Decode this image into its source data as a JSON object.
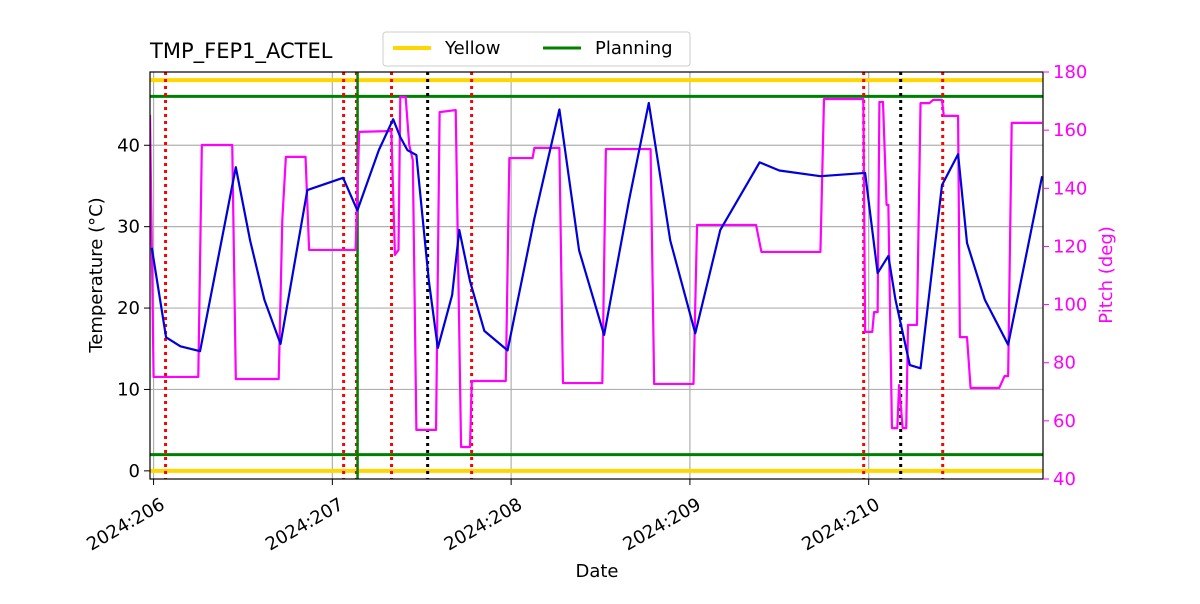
{
  "chart_data": {
    "type": "line",
    "title": "TMP_FEP1_ACTEL",
    "x_label": "Date",
    "y_label": "Temperature (°C)",
    "y2_label": "Pitch (deg)",
    "xlim": [
      205.98,
      210.975
    ],
    "xticks": [
      {
        "value": 206,
        "label": "2024:206"
      },
      {
        "value": 207,
        "label": "2024:207"
      },
      {
        "value": 208,
        "label": "2024:208"
      },
      {
        "value": 209,
        "label": "2024:209"
      },
      {
        "value": 210,
        "label": "2024:210"
      }
    ],
    "ylim": [
      -1,
      49
    ],
    "yticks": [
      0,
      10,
      20,
      30,
      40
    ],
    "y2lim": [
      40,
      180
    ],
    "y2ticks": [
      40,
      60,
      80,
      100,
      120,
      140,
      160,
      180
    ],
    "y2_color": "#ff00ff",
    "grid": true,
    "legend": "top",
    "limit_lines": [
      {
        "name": "Yellow",
        "color": "#ffd700",
        "values": [
          0,
          48
        ]
      },
      {
        "name": "Planning",
        "color": "#008000",
        "values": [
          2,
          46
        ]
      }
    ],
    "vlines": [
      {
        "x": 206.067,
        "color": "#ff0000",
        "style": "dotted"
      },
      {
        "x": 207.063,
        "color": "#ff0000",
        "style": "dotted"
      },
      {
        "x": 207.135,
        "color": "#ff0000",
        "style": "dotted"
      },
      {
        "x": 207.141,
        "color": "#008000",
        "style": "solid"
      },
      {
        "x": 207.331,
        "color": "#ff0000",
        "style": "dotted"
      },
      {
        "x": 207.533,
        "color": "#000000",
        "style": "dotted"
      },
      {
        "x": 207.779,
        "color": "#ff0000",
        "style": "dotted"
      },
      {
        "x": 209.972,
        "color": "#ff0000",
        "style": "dotted"
      },
      {
        "x": 210.179,
        "color": "#000000",
        "style": "dotted"
      },
      {
        "x": 210.414,
        "color": "#ff0000",
        "style": "dotted"
      }
    ],
    "series": [
      {
        "axis": "y2",
        "color": "#ff00ff",
        "x": [
          205.98,
          206.0,
          206.25,
          206.27,
          206.44,
          206.46,
          206.7,
          206.72,
          206.74,
          206.85,
          206.87,
          207.13,
          207.15,
          207.33,
          207.35,
          207.37,
          207.38,
          207.41,
          207.43,
          207.45,
          207.47,
          207.58,
          207.6,
          207.69,
          207.72,
          207.77,
          207.78,
          207.97,
          207.99,
          208.12,
          208.13,
          208.27,
          208.29,
          208.51,
          208.53,
          208.78,
          208.8,
          209.02,
          209.04,
          209.37,
          209.4,
          209.73,
          209.75,
          209.97,
          209.98,
          210.02,
          210.03,
          210.05,
          210.06,
          210.08,
          210.1,
          210.11,
          210.13,
          210.16,
          210.17,
          210.19,
          210.21,
          210.22,
          210.27,
          210.29,
          210.34,
          210.36,
          210.41,
          210.42,
          210.5,
          210.51,
          210.55,
          210.57,
          210.73,
          210.76,
          210.78,
          210.8,
          210.97
        ],
        "values": [
          165.2,
          75.1,
          75.1,
          154.9,
          154.9,
          74.4,
          74.4,
          129.1,
          150.8,
          150.8,
          118.8,
          118.8,
          159.4,
          159.7,
          117.1,
          118.8,
          171.4,
          171.4,
          154.9,
          149.7,
          56.9,
          56.9,
          166.2,
          166.9,
          51.0,
          51.0,
          73.7,
          73.7,
          150.4,
          150.4,
          153.9,
          153.9,
          73.0,
          73.0,
          153.5,
          153.5,
          72.7,
          72.7,
          127.4,
          127.4,
          118.1,
          118.1,
          170.7,
          170.7,
          90.6,
          90.6,
          97.4,
          97.4,
          169.7,
          169.7,
          134.3,
          134.3,
          57.5,
          57.5,
          72.3,
          57.5,
          57.5,
          93.0,
          93.0,
          169.3,
          169.3,
          170.4,
          170.4,
          164.9,
          164.9,
          88.8,
          88.8,
          71.3,
          71.3,
          75.4,
          75.4,
          162.5,
          162.5
        ]
      },
      {
        "axis": "y",
        "color": "#0000dd",
        "x": [
          205.99,
          206.07,
          206.15,
          206.26,
          206.46,
          206.54,
          206.62,
          206.71,
          206.86,
          207.06,
          207.14,
          207.26,
          207.34,
          207.38,
          207.42,
          207.47,
          207.54,
          207.59,
          207.67,
          207.71,
          207.77,
          207.85,
          207.98,
          208.13,
          208.27,
          208.38,
          208.52,
          208.66,
          208.77,
          208.89,
          209.03,
          209.17,
          209.39,
          209.5,
          209.73,
          209.98,
          210.05,
          210.11,
          210.15,
          210.23,
          210.29,
          210.41,
          210.5,
          210.55,
          210.65,
          210.78,
          210.97
        ],
        "values": [
          27.4,
          16.4,
          15.3,
          14.7,
          37.3,
          28.3,
          21.0,
          15.6,
          34.5,
          36.0,
          32.0,
          39.4,
          43.2,
          41.0,
          39.4,
          38.8,
          23.3,
          15.1,
          21.6,
          29.6,
          23.3,
          17.2,
          14.8,
          31.0,
          44.4,
          27.1,
          16.7,
          33.3,
          45.2,
          28.3,
          16.9,
          29.6,
          37.9,
          36.9,
          36.2,
          36.6,
          24.3,
          26.4,
          21.0,
          13.0,
          12.6,
          35.1,
          38.9,
          28.0,
          21.0,
          15.5,
          36.2
        ]
      }
    ]
  }
}
